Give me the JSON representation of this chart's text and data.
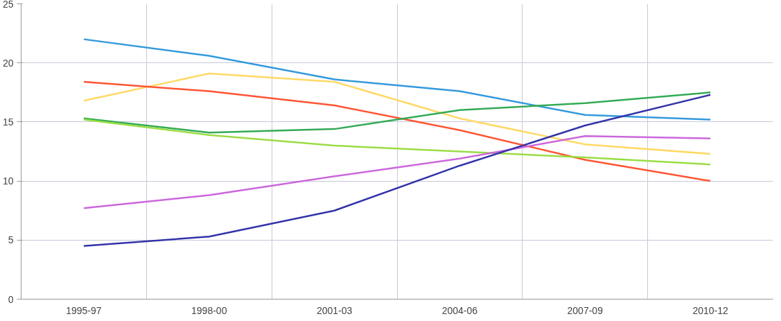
{
  "chart_data": {
    "type": "line",
    "categories": [
      "1995-97",
      "1998-00",
      "2001-03",
      "2004-06",
      "2007-09",
      "2010-12"
    ],
    "series": [
      {
        "color": "#3399dd",
        "values": [
          22.0,
          20.6,
          18.6,
          17.6,
          15.6,
          15.2
        ]
      },
      {
        "color": "#ffd966",
        "values": [
          16.8,
          19.1,
          18.4,
          15.3,
          13.1,
          12.3
        ]
      },
      {
        "color": "#ff5533",
        "values": [
          18.4,
          17.6,
          16.4,
          14.3,
          11.8,
          10.0
        ]
      },
      {
        "color": "#33aa55",
        "values": [
          15.3,
          14.1,
          14.4,
          16.0,
          16.6,
          17.5
        ]
      },
      {
        "color": "#99dd44",
        "values": [
          15.2,
          13.9,
          13.0,
          12.5,
          12.0,
          11.4
        ]
      },
      {
        "color": "#cc66dd",
        "values": [
          7.7,
          8.8,
          10.4,
          11.9,
          13.8,
          13.6
        ]
      },
      {
        "color": "#3333aa",
        "values": [
          4.5,
          5.3,
          7.5,
          11.3,
          14.7,
          17.3
        ]
      }
    ],
    "ylim": [
      0,
      25
    ],
    "yticks": [
      0,
      5,
      10,
      15,
      20,
      25
    ],
    "grid": true
  }
}
